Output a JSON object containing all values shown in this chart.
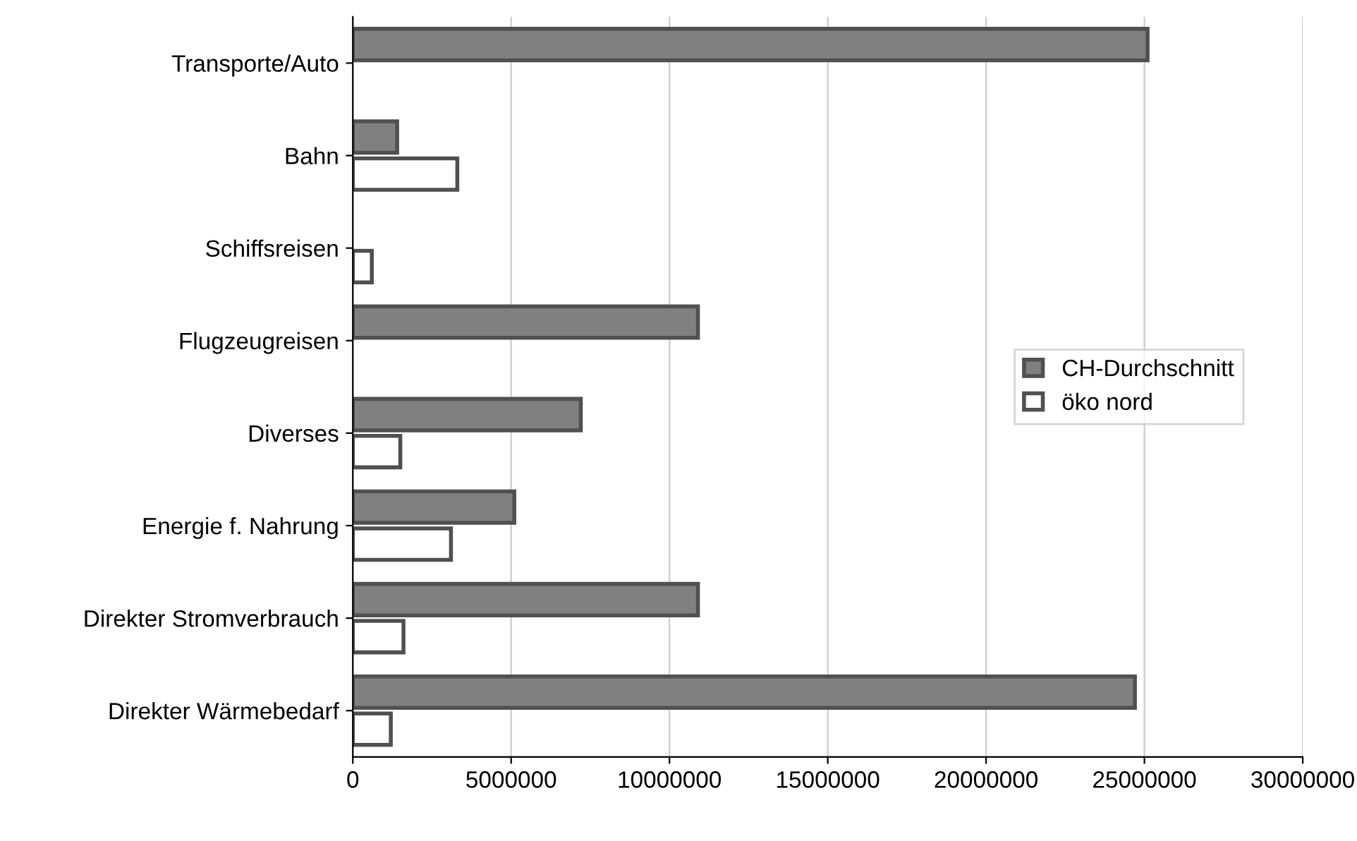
{
  "chart_data": {
    "type": "bar",
    "orientation": "horizontal",
    "categories": [
      "Transporte/Auto",
      "Bahn",
      "Schiffsreisen",
      "Flugzeugreisen",
      "Diverses",
      "Energie f. Nahrung",
      "Direkter Stromverbrauch",
      "Direkter Wärmebedarf"
    ],
    "series": [
      {
        "name": "CH-Durchschnitt",
        "color": "#808080",
        "values": [
          25100000,
          1400000,
          null,
          10900000,
          7200000,
          5100000,
          10900000,
          24700000
        ]
      },
      {
        "name": "öko nord",
        "color": "#ffffff",
        "values": [
          null,
          3300000,
          600000,
          null,
          1500000,
          3100000,
          1600000,
          1200000
        ]
      }
    ],
    "xlim": [
      0,
      30000000
    ],
    "xticks": [
      0,
      5000000,
      10000000,
      15000000,
      20000000,
      25000000,
      30000000
    ],
    "grid": "x",
    "legend": "right"
  }
}
